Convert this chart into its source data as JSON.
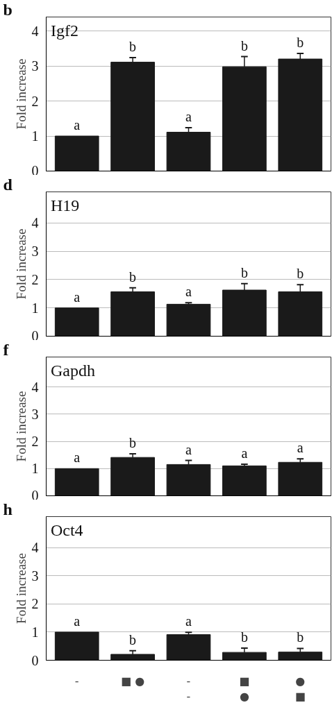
{
  "chart_data": [
    {
      "type": "bar",
      "title": "Igf2",
      "ylabel": "Fold increase",
      "annotations": [
        "b"
      ],
      "categories": [
        null,
        null,
        null,
        null,
        null
      ],
      "tick_labels": "y",
      "color": "#1a1a1a",
      "values": [
        1.0,
        3.11,
        1.11,
        2.98,
        3.2
      ],
      "errors": [
        null,
        [
          3.11,
          3.24
        ],
        [
          1.11,
          1.24
        ],
        [
          2.98,
          3.27
        ],
        [
          3.2,
          3.36
        ]
      ],
      "value_labels": [
        "a",
        "b",
        "a",
        "b",
        "b"
      ],
      "ylim": [
        0,
        4.4
      ],
      "yticks": [
        0,
        1,
        2,
        3,
        4
      ],
      "grid": "y"
    },
    {
      "type": "bar",
      "title": "H19",
      "ylabel": "Fold increase",
      "annotations": [
        "d"
      ],
      "categories": [
        null,
        null,
        null,
        null,
        null
      ],
      "tick_labels": "y",
      "color": "#1a1a1a",
      "values": [
        1.0,
        1.57,
        1.13,
        1.63,
        1.57
      ],
      "errors": [
        null,
        [
          1.57,
          1.71
        ],
        [
          1.13,
          1.18
        ],
        [
          1.63,
          1.86
        ],
        [
          1.57,
          1.82
        ]
      ],
      "value_labels": [
        "a",
        "b",
        "a",
        "b",
        "b"
      ],
      "ylim": [
        0,
        5.1
      ],
      "yticks": [
        0,
        1,
        2,
        3,
        4
      ],
      "grid": "y"
    },
    {
      "type": "bar",
      "title": "Gapdh",
      "ylabel": "Fold increase",
      "annotations": [
        "f"
      ],
      "categories": [
        null,
        null,
        null,
        null,
        null
      ],
      "tick_labels": "y",
      "color": "#1a1a1a",
      "values": [
        1.0,
        1.41,
        1.15,
        1.1,
        1.23
      ],
      "errors": [
        null,
        [
          1.41,
          1.54
        ],
        [
          1.15,
          1.3
        ],
        [
          1.1,
          1.16
        ],
        [
          1.23,
          1.36
        ]
      ],
      "value_labels": [
        "a",
        "b",
        "a",
        "a",
        "a"
      ],
      "ylim": [
        0,
        5.1
      ],
      "yticks": [
        0,
        1,
        2,
        3,
        4
      ],
      "grid": "y"
    },
    {
      "type": "bar",
      "title": "Oct4",
      "ylabel": "Fold increase",
      "annotations": [
        "h"
      ],
      "categories": [
        "-",
        "■ ●",
        "-\n-",
        "■\n●",
        "●\n■"
      ],
      "color": "#1a1a1a",
      "values": [
        1.0,
        0.21,
        0.91,
        0.28,
        0.29
      ],
      "errors": [
        null,
        [
          0.21,
          0.34
        ],
        [
          0.91,
          0.99
        ],
        [
          0.28,
          0.43
        ],
        [
          0.29,
          0.42
        ]
      ],
      "value_labels": [
        "a",
        "b",
        "a",
        "b",
        "b"
      ],
      "ylim": [
        0,
        5.1
      ],
      "yticks": [
        0,
        1,
        2,
        3,
        4
      ],
      "grid": "y"
    }
  ]
}
